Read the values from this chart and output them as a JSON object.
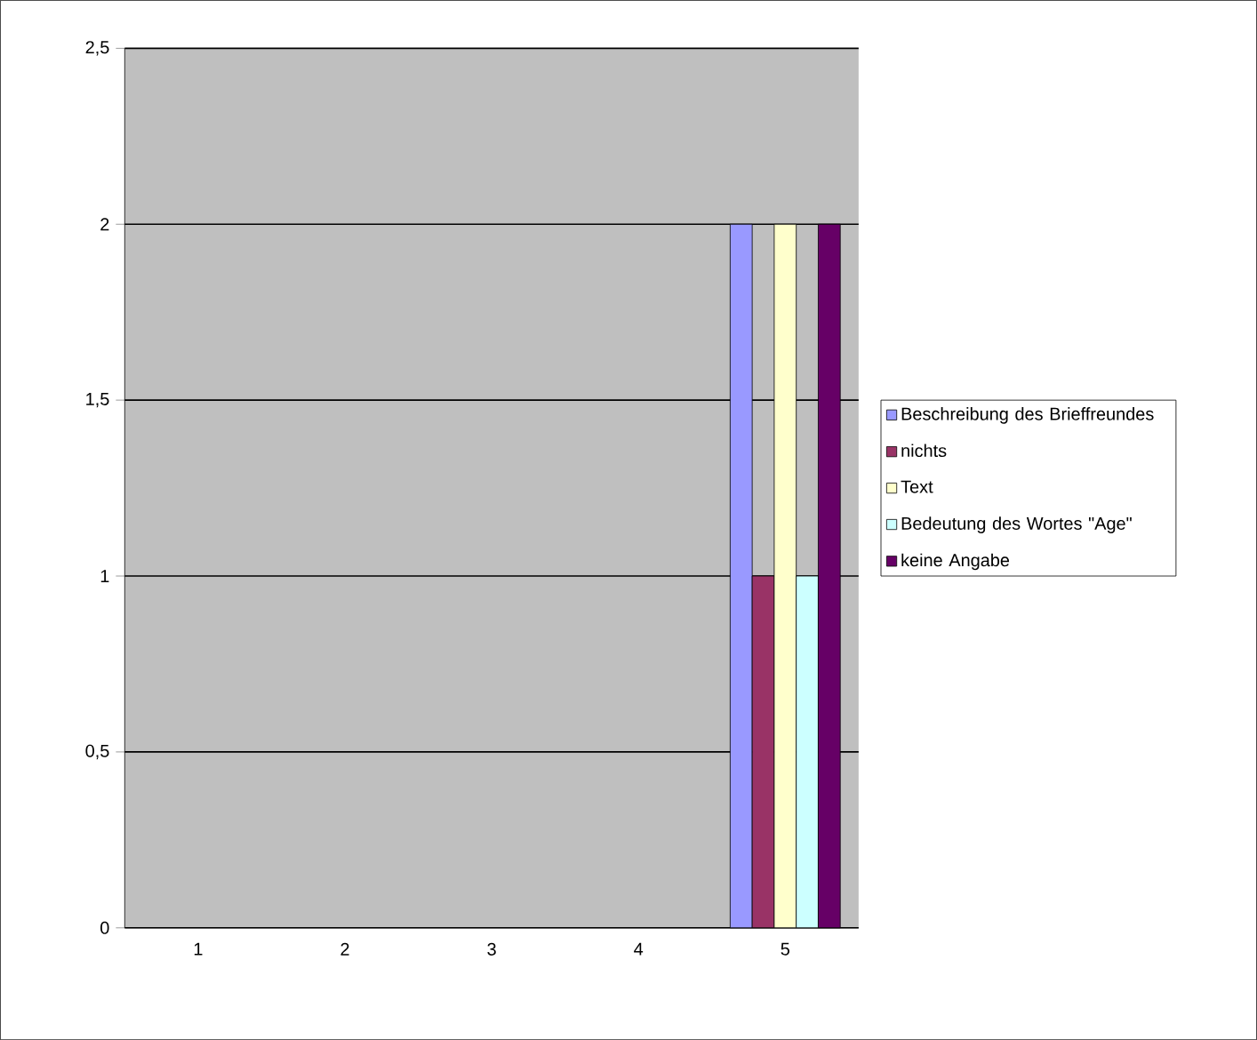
{
  "chart_data": {
    "type": "bar",
    "categories": [
      "1",
      "2",
      "3",
      "4",
      "5"
    ],
    "series": [
      {
        "name": "Beschreibung des Brieffreundes",
        "color": "#9999ff",
        "values": [
          null,
          null,
          null,
          null,
          2
        ]
      },
      {
        "name": "nichts",
        "color": "#993366",
        "values": [
          null,
          null,
          null,
          null,
          1
        ]
      },
      {
        "name": "Text",
        "color": "#ffffcc",
        "values": [
          null,
          null,
          null,
          null,
          2
        ]
      },
      {
        "name": "Bedeutung des Wortes \"Age\"",
        "color": "#ccffff",
        "values": [
          null,
          null,
          null,
          null,
          1
        ]
      },
      {
        "name": "keine Angabe",
        "color": "#660066",
        "values": [
          null,
          null,
          null,
          null,
          2
        ]
      }
    ],
    "ylim": [
      0,
      2.5
    ],
    "yticks": [
      0,
      {
        "value": 0.5,
        "label": "0,5"
      },
      1,
      {
        "value": 1.5,
        "label": "1,5"
      },
      2,
      {
        "value": 2.5,
        "label": "2,5"
      }
    ],
    "grid": "y",
    "legend": "right"
  }
}
